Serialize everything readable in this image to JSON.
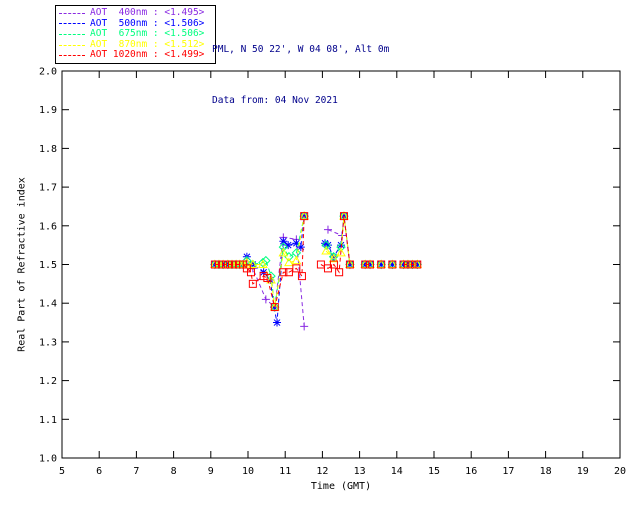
{
  "header": {
    "line1": "PML, N 50 22', W 04 08', Alt 0m",
    "line2": "Data from: 04 Nov 2021",
    "color": "#00008B"
  },
  "legend": {
    "items": [
      {
        "label": "AOT  400nm : <1.495>",
        "color": "#8A2BE2"
      },
      {
        "label": "AOT  500nm : <1.506>",
        "color": "#0000FF"
      },
      {
        "label": "AOT  675nm : <1.506>",
        "color": "#00FF7F"
      },
      {
        "label": "AOT  870nm : <1.512>",
        "color": "#FFFF00"
      },
      {
        "label": "AOT 1020nm : <1.499>",
        "color": "#FF0000"
      }
    ]
  },
  "chart_data": {
    "type": "line",
    "title": "",
    "xlabel": "Time (GMT)",
    "ylabel": "Real Part of Refractive index",
    "xlim": [
      5,
      20
    ],
    "ylim": [
      1.0,
      2.0
    ],
    "xticks": [
      5,
      6,
      7,
      8,
      9,
      10,
      11,
      12,
      13,
      14,
      15,
      16,
      17,
      18,
      19,
      20
    ],
    "yticks": [
      "1.0",
      "1.1",
      "1.2",
      "1.3",
      "1.4",
      "1.5",
      "1.6",
      "1.7",
      "1.8",
      "1.9",
      "2.0"
    ],
    "grid": false,
    "axis_color": "#000000",
    "legend_position": "top-left-outside",
    "series": [
      {
        "name": "AOT 400nm",
        "mean_value": "<1.495>",
        "color": "#8A2BE2",
        "marker": "plus",
        "line_style": "dashed",
        "segments": [
          [
            [
              9.11,
              1.5
            ],
            [
              9.22,
              1.5
            ],
            [
              9.33,
              1.5
            ],
            [
              9.46,
              1.5
            ],
            [
              9.57,
              1.5
            ],
            [
              9.68,
              1.5
            ],
            [
              9.78,
              1.5
            ],
            [
              9.87,
              1.5
            ],
            [
              9.97,
              1.5
            ],
            [
              10.13,
              1.49
            ],
            [
              10.48,
              1.41
            ],
            [
              10.72,
              1.39
            ],
            [
              10.95,
              1.57
            ],
            [
              11.3,
              1.565
            ],
            [
              11.51,
              1.34
            ]
          ],
          [
            [
              12.15,
              1.59
            ],
            [
              12.53,
              1.575
            ],
            [
              12.58,
              1.625
            ],
            [
              12.74,
              1.5
            ]
          ],
          [
            [
              13.15,
              1.5
            ],
            [
              13.28,
              1.5
            ]
          ],
          [
            [
              13.58,
              1.5
            ]
          ],
          [
            [
              13.88,
              1.5
            ]
          ],
          [
            [
              14.18,
              1.5
            ],
            [
              14.3,
              1.5
            ],
            [
              14.42,
              1.5
            ],
            [
              14.55,
              1.5
            ]
          ]
        ]
      },
      {
        "name": "AOT 500nm",
        "mean_value": "<1.506>",
        "color": "#0000FF",
        "marker": "asterisk",
        "line_style": "dashed",
        "segments": [
          [
            [
              9.11,
              1.5
            ],
            [
              9.22,
              1.5
            ],
            [
              9.33,
              1.5
            ],
            [
              9.46,
              1.5
            ],
            [
              9.57,
              1.5
            ],
            [
              9.68,
              1.5
            ],
            [
              9.78,
              1.5
            ],
            [
              9.87,
              1.5
            ],
            [
              9.97,
              1.52
            ],
            [
              10.13,
              1.5
            ],
            [
              10.42,
              1.48
            ],
            [
              10.6,
              1.46
            ],
            [
              10.7,
              1.39
            ],
            [
              10.78,
              1.35
            ],
            [
              10.95,
              1.56
            ],
            [
              11.08,
              1.55
            ],
            [
              11.3,
              1.555
            ],
            [
              11.42,
              1.545
            ],
            [
              11.51,
              1.625
            ]
          ],
          [
            [
              12.07,
              1.555
            ],
            [
              12.15,
              1.55
            ],
            [
              12.3,
              1.52
            ],
            [
              12.5,
              1.55
            ],
            [
              12.58,
              1.625
            ],
            [
              12.74,
              1.5
            ]
          ],
          [
            [
              13.15,
              1.5
            ],
            [
              13.28,
              1.5
            ]
          ],
          [
            [
              13.58,
              1.5
            ]
          ],
          [
            [
              13.88,
              1.5
            ]
          ],
          [
            [
              14.18,
              1.5
            ],
            [
              14.3,
              1.5
            ],
            [
              14.42,
              1.5
            ],
            [
              14.55,
              1.5
            ]
          ]
        ]
      },
      {
        "name": "AOT 675nm",
        "mean_value": "<1.506>",
        "color": "#00FF7F",
        "marker": "diamond",
        "line_style": "dashed",
        "segments": [
          [
            [
              9.11,
              1.5
            ],
            [
              9.22,
              1.5
            ],
            [
              9.33,
              1.5
            ],
            [
              9.46,
              1.5
            ],
            [
              9.57,
              1.5
            ],
            [
              9.68,
              1.5
            ],
            [
              9.78,
              1.5
            ],
            [
              9.87,
              1.5
            ],
            [
              9.97,
              1.51
            ],
            [
              10.13,
              1.5
            ],
            [
              10.4,
              1.505
            ],
            [
              10.48,
              1.51
            ],
            [
              10.62,
              1.47
            ],
            [
              10.72,
              1.39
            ],
            [
              10.95,
              1.545
            ],
            [
              11.1,
              1.52
            ],
            [
              11.3,
              1.53
            ],
            [
              11.51,
              1.625
            ]
          ],
          [
            [
              12.1,
              1.55
            ],
            [
              12.3,
              1.52
            ],
            [
              12.5,
              1.545
            ],
            [
              12.58,
              1.625
            ],
            [
              12.74,
              1.5
            ]
          ],
          [
            [
              13.15,
              1.5
            ],
            [
              13.28,
              1.5
            ]
          ],
          [
            [
              13.58,
              1.5
            ]
          ],
          [
            [
              13.88,
              1.5
            ]
          ],
          [
            [
              14.18,
              1.5
            ],
            [
              14.3,
              1.5
            ],
            [
              14.42,
              1.5
            ],
            [
              14.55,
              1.5
            ]
          ]
        ]
      },
      {
        "name": "AOT 870nm",
        "mean_value": "<1.512>",
        "color": "#FFFF00",
        "marker": "triangle",
        "line_style": "dashed",
        "segments": [
          [
            [
              9.11,
              1.5
            ],
            [
              9.22,
              1.5
            ],
            [
              9.33,
              1.5
            ],
            [
              9.46,
              1.5
            ],
            [
              9.57,
              1.5
            ],
            [
              9.68,
              1.5
            ],
            [
              9.78,
              1.5
            ],
            [
              9.87,
              1.5
            ],
            [
              9.97,
              1.505
            ],
            [
              10.13,
              1.5
            ],
            [
              10.4,
              1.5
            ],
            [
              10.62,
              1.46
            ],
            [
              10.72,
              1.39
            ],
            [
              10.95,
              1.53
            ],
            [
              11.1,
              1.505
            ],
            [
              11.3,
              1.51
            ],
            [
              11.51,
              1.625
            ]
          ],
          [
            [
              12.1,
              1.535
            ],
            [
              12.3,
              1.515
            ],
            [
              12.5,
              1.53
            ],
            [
              12.58,
              1.625
            ],
            [
              12.74,
              1.5
            ]
          ],
          [
            [
              13.15,
              1.5
            ],
            [
              13.28,
              1.5
            ]
          ],
          [
            [
              13.58,
              1.5
            ]
          ],
          [
            [
              13.88,
              1.5
            ]
          ],
          [
            [
              14.18,
              1.5
            ],
            [
              14.3,
              1.5
            ],
            [
              14.42,
              1.5
            ],
            [
              14.55,
              1.5
            ]
          ]
        ]
      },
      {
        "name": "AOT 1020nm",
        "mean_value": "<1.499>",
        "color": "#FF0000",
        "marker": "square",
        "line_style": "dashed",
        "segments": [
          [
            [
              9.11,
              1.5
            ],
            [
              9.22,
              1.5
            ],
            [
              9.33,
              1.5
            ],
            [
              9.46,
              1.5
            ],
            [
              9.57,
              1.5
            ],
            [
              9.68,
              1.5
            ],
            [
              9.78,
              1.5
            ],
            [
              9.87,
              1.5
            ],
            [
              9.97,
              1.49
            ],
            [
              10.08,
              1.48
            ],
            [
              10.13,
              1.45
            ],
            [
              10.42,
              1.47
            ],
            [
              10.52,
              1.465
            ],
            [
              10.72,
              1.39
            ],
            [
              10.95,
              1.48
            ],
            [
              11.1,
              1.48
            ],
            [
              11.3,
              1.49
            ],
            [
              11.45,
              1.47
            ],
            [
              11.51,
              1.625
            ]
          ],
          [
            [
              11.96,
              1.5
            ],
            [
              12.15,
              1.49
            ],
            [
              12.31,
              1.5
            ],
            [
              12.45,
              1.48
            ],
            [
              12.58,
              1.625
            ],
            [
              12.74,
              1.5
            ]
          ],
          [
            [
              13.15,
              1.5
            ],
            [
              13.28,
              1.5
            ]
          ],
          [
            [
              13.58,
              1.5
            ]
          ],
          [
            [
              13.88,
              1.5
            ]
          ],
          [
            [
              14.18,
              1.5
            ],
            [
              14.3,
              1.5
            ],
            [
              14.42,
              1.5
            ],
            [
              14.55,
              1.5
            ]
          ]
        ]
      }
    ]
  }
}
